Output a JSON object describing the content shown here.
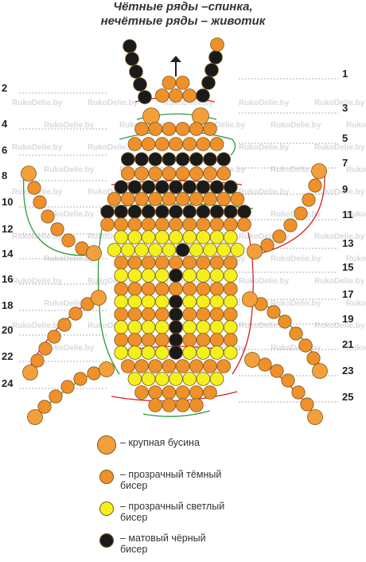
{
  "title": {
    "line1": "Чётные ряды –спинка,",
    "line2": "нечётные ряды – животик"
  },
  "watermark": "RukoDelie.by",
  "colors": {
    "orange": "#f0902a",
    "big_orange": "#f4a03a",
    "yellow": "#f4f01e",
    "black": "#1a1a1a",
    "green_thread": "#2e9a3a",
    "red_thread": "#d82020",
    "outline": "#7a5a20"
  },
  "row_labels": {
    "left": [
      "2",
      "4",
      "6",
      "8",
      "10",
      "12",
      "14",
      "16",
      "18",
      "20",
      "22",
      "24"
    ],
    "right": [
      "1",
      "3",
      "5",
      "7",
      "9",
      "11",
      "13",
      "15",
      "17",
      "19",
      "21",
      "23",
      "25"
    ]
  },
  "legend": [
    {
      "type": "big_orange",
      "text": "– крупная бусина"
    },
    {
      "type": "orange",
      "text": "– прозрачный тёмный\nбисер"
    },
    {
      "type": "yellow",
      "text": "– прозрачный светлый\nбисер"
    },
    {
      "type": "black",
      "text": "– матовый чёрный\nбисер"
    }
  ]
}
